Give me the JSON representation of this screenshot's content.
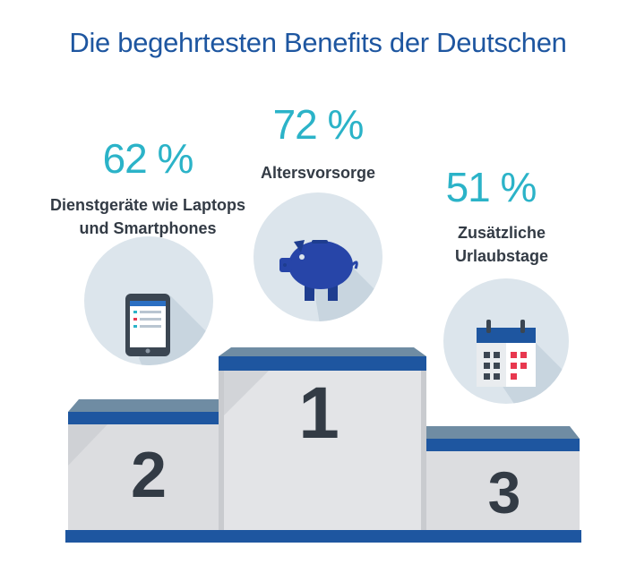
{
  "title": "Die begehrtesten Benefits der Deutschen",
  "colors": {
    "title": "#1e56a0",
    "percent": "#2bb3c8",
    "label": "#333b45",
    "podium_top": "#6f8ca3",
    "podium_stripe": "#1e56a0",
    "podium_face": "#dcdde0",
    "circle": "#dce5ec",
    "piggy": "#2745a8",
    "calendar_red": "#e8384f"
  },
  "places": [
    {
      "rank": "1",
      "percent": "72 %",
      "label": [
        "Altersvorsorge"
      ],
      "icon": "piggy-bank-icon"
    },
    {
      "rank": "2",
      "percent": "62 %",
      "label": [
        "Dienstgeräte wie Laptops",
        "und Smartphones"
      ],
      "icon": "tablet-icon"
    },
    {
      "rank": "3",
      "percent": "51 %",
      "label": [
        "Zusätzliche",
        "Urlaubstage"
      ],
      "icon": "calendar-icon"
    }
  ]
}
